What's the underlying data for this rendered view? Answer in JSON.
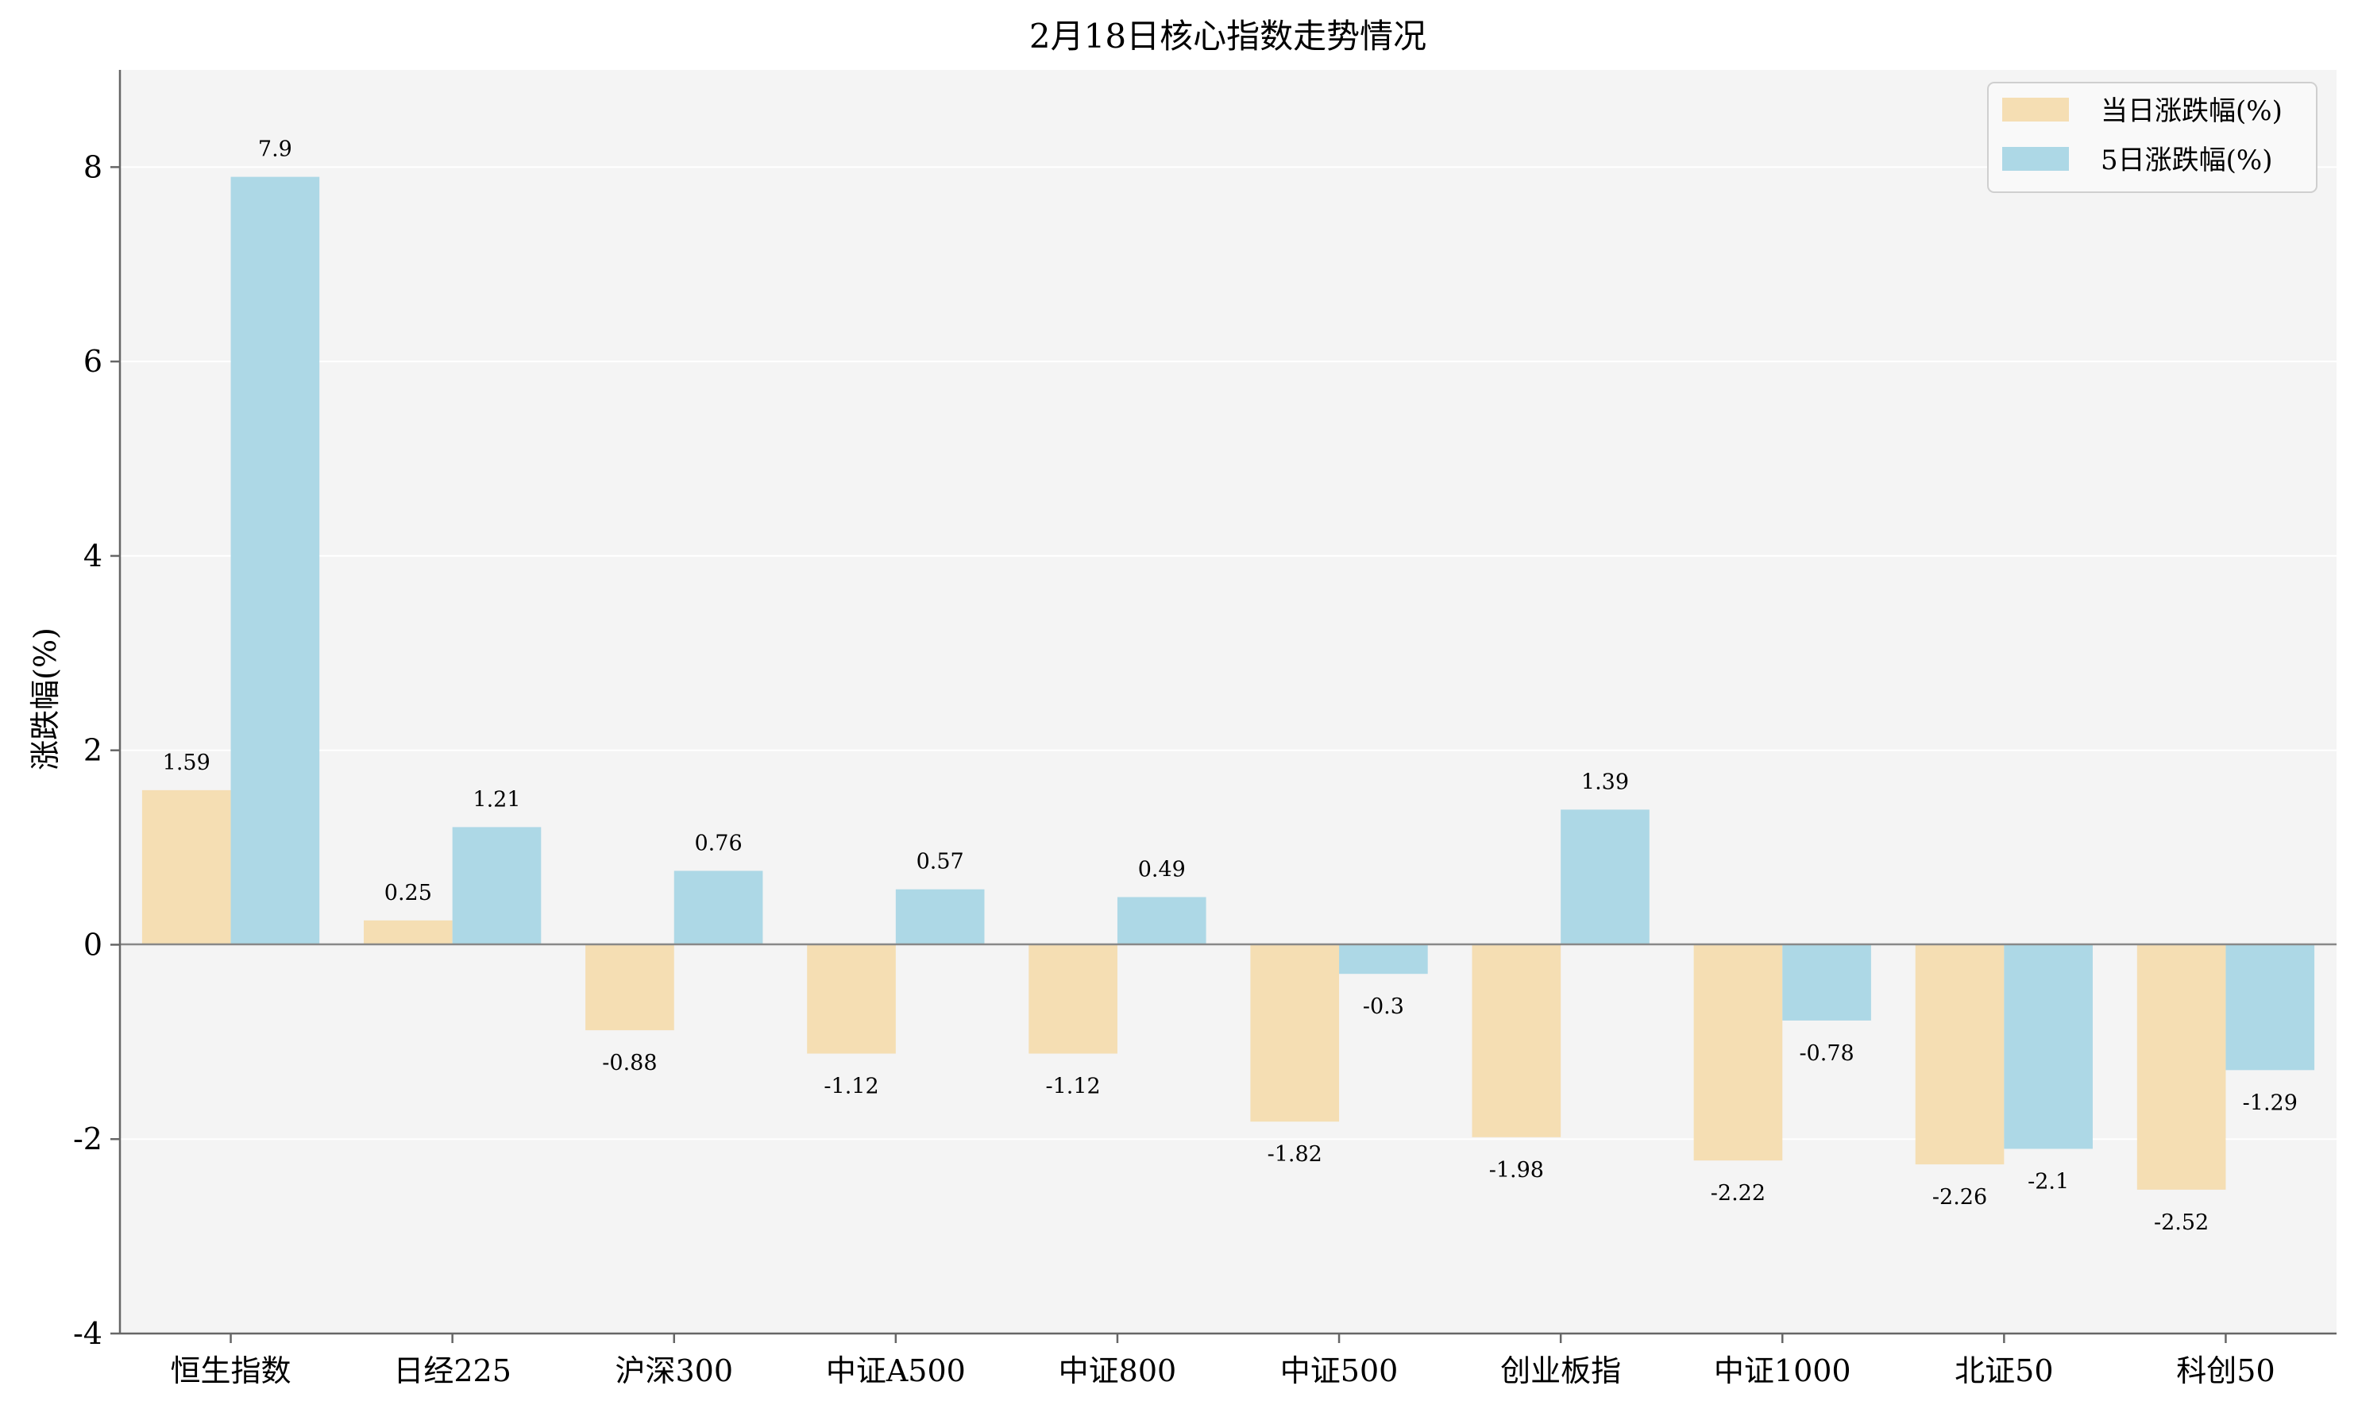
{
  "chart_data": {
    "type": "bar",
    "title": "2月18日核心指数走势情况",
    "xlabel": "",
    "ylabel": "涨跌幅(%)",
    "ylim": [
      -4,
      9
    ],
    "yticks": [
      -4,
      -2,
      0,
      2,
      4,
      6,
      8
    ],
    "grid": true,
    "legend_position": "top-right",
    "categories": [
      "恒生指数",
      "日经225",
      "沪深300",
      "中证A500",
      "中证800",
      "中证500",
      "创业板指",
      "中证1000",
      "北证50",
      "科创50"
    ],
    "series": [
      {
        "name": "当日涨跌幅(%)",
        "color": "#f5deb3",
        "values": [
          1.59,
          0.25,
          -0.88,
          -1.12,
          -1.12,
          -1.82,
          -1.98,
          -2.22,
          -2.26,
          -2.52
        ],
        "labels": [
          "1.59",
          "0.25",
          "-0.88",
          "-1.12",
          "-1.12",
          "-1.82",
          "-1.98",
          "-2.22",
          "-2.26",
          "-2.52"
        ]
      },
      {
        "name": "5日涨跌幅(%)",
        "color": "#add8e6",
        "values": [
          7.9,
          1.21,
          0.76,
          0.57,
          0.49,
          -0.3,
          1.39,
          -0.78,
          -2.1,
          -1.29
        ],
        "labels": [
          "7.9",
          "1.21",
          "0.76",
          "0.57",
          "0.49",
          "-0.3",
          "1.39",
          "-0.78",
          "-2.1",
          "-1.29"
        ]
      }
    ]
  }
}
